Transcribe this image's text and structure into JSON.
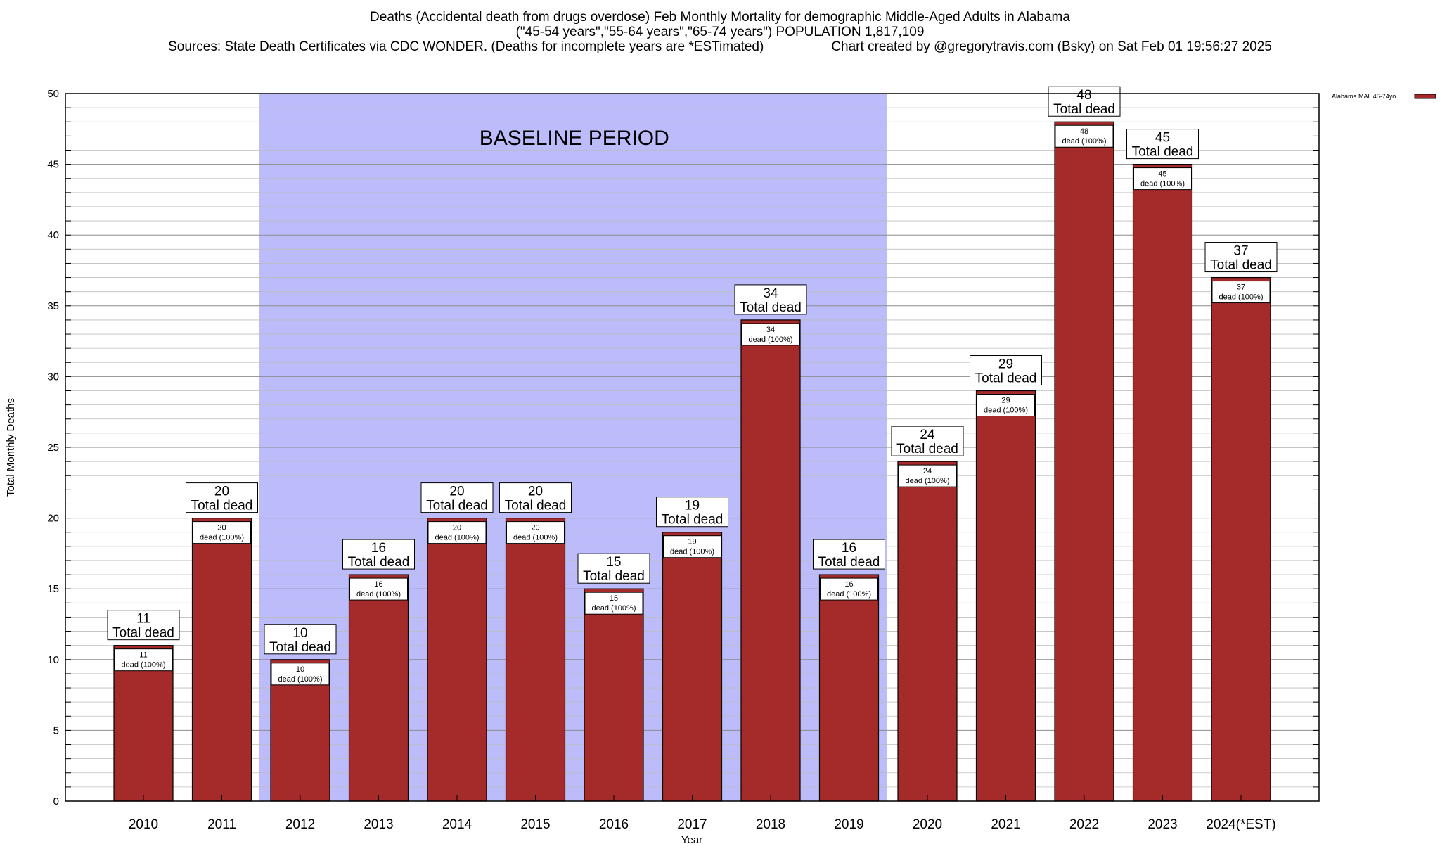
{
  "title": {
    "line1": "Deaths (Accidental death from drugs overdose) Feb Monthly Mortality for demographic Middle-Aged Adults in Alabama",
    "line2": "(\"45-54 years\",\"55-64 years\",\"65-74 years\") POPULATION 1,817,109",
    "line3_left": "Sources: State Death Certificates via CDC WONDER. (Deaths for incomplete years are *ESTimated)",
    "line3_right": "Chart created by @gregorytravis.com (Bsky) on Sat Feb 01 19:56:27 2025"
  },
  "chart_data": {
    "type": "bar",
    "xlabel": "Year",
    "ylabel": "Total Monthly Deaths",
    "ylim": [
      0,
      50
    ],
    "yticks": [
      0,
      5,
      10,
      15,
      20,
      25,
      30,
      35,
      40,
      45,
      50
    ],
    "y_minor_step": 1,
    "grid": true,
    "categories": [
      "2010",
      "2011",
      "2012",
      "2013",
      "2014",
      "2015",
      "2016",
      "2017",
      "2018",
      "2019",
      "2020",
      "2021",
      "2022",
      "2023",
      "2024(*EST)"
    ],
    "series": [
      {
        "name": "Alabama MAL 45-74yo",
        "color": "#a52a2a",
        "values": [
          11,
          20,
          10,
          16,
          20,
          20,
          15,
          19,
          34,
          16,
          24,
          29,
          48,
          45,
          37
        ]
      }
    ],
    "top_label_suffix": "Total dead",
    "inner_label_suffix": "dead (100%)",
    "baseline_period": {
      "label": "BASELINE PERIOD",
      "from": "2012",
      "to": "2019",
      "color": "#bcbcfa"
    },
    "legend_position": "top-right"
  }
}
